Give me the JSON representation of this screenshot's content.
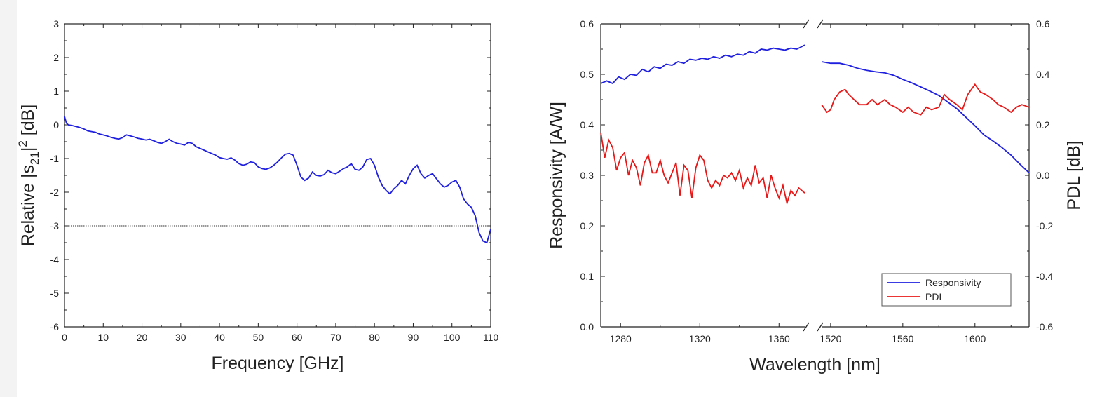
{
  "chart_data": [
    {
      "type": "line",
      "xlabel": "Frequency  [GHz]",
      "ylabel_main": "Relative |s",
      "ylabel_sub": "21",
      "ylabel_sup": "2",
      "ylabel_tail": "  [dB]",
      "xlim": [
        0,
        110
      ],
      "ylim": [
        -6,
        3
      ],
      "x_ticks": [
        "0",
        "10",
        "20",
        "30",
        "40",
        "50",
        "60",
        "70",
        "80",
        "90",
        "100",
        "110"
      ],
      "y_ticks": [
        "-6",
        "-5",
        "-4",
        "-3",
        "-2",
        "-1",
        "0",
        "1",
        "2",
        "3"
      ],
      "reference_line_y": -3,
      "series": [
        {
          "color": "#1f1fe0",
          "x": [
            0,
            0.5,
            1,
            2,
            3,
            4,
            5,
            6,
            7,
            8,
            9,
            10,
            11,
            12,
            13,
            14,
            15,
            16,
            17,
            18,
            19,
            20,
            21,
            22,
            23,
            24,
            25,
            26,
            27,
            28,
            29,
            30,
            31,
            32,
            33,
            34,
            35,
            36,
            37,
            38,
            39,
            40,
            41,
            42,
            43,
            44,
            45,
            46,
            47,
            48,
            49,
            50,
            51,
            52,
            53,
            54,
            55,
            56,
            57,
            58,
            59,
            60,
            61,
            62,
            63,
            64,
            65,
            66,
            67,
            68,
            69,
            70,
            71,
            72,
            73,
            74,
            75,
            76,
            77,
            78,
            79,
            80,
            81,
            82,
            83,
            84,
            85,
            86,
            87,
            88,
            89,
            90,
            91,
            92,
            93,
            94,
            95,
            96,
            97,
            98,
            99,
            100,
            101,
            102,
            103,
            104,
            105,
            106,
            107,
            108,
            109,
            110
          ],
          "y": [
            0.25,
            0.05,
            0.0,
            -0.02,
            -0.05,
            -0.08,
            -0.12,
            -0.18,
            -0.2,
            -0.22,
            -0.27,
            -0.3,
            -0.33,
            -0.37,
            -0.4,
            -0.42,
            -0.38,
            -0.3,
            -0.33,
            -0.36,
            -0.4,
            -0.42,
            -0.45,
            -0.43,
            -0.47,
            -0.52,
            -0.55,
            -0.5,
            -0.43,
            -0.5,
            -0.55,
            -0.57,
            -0.6,
            -0.52,
            -0.55,
            -0.65,
            -0.7,
            -0.75,
            -0.8,
            -0.85,
            -0.9,
            -0.97,
            -1.0,
            -1.02,
            -0.98,
            -1.05,
            -1.15,
            -1.2,
            -1.17,
            -1.1,
            -1.12,
            -1.25,
            -1.3,
            -1.32,
            -1.28,
            -1.2,
            -1.1,
            -0.98,
            -0.87,
            -0.85,
            -0.9,
            -1.2,
            -1.55,
            -1.65,
            -1.58,
            -1.4,
            -1.5,
            -1.52,
            -1.48,
            -1.35,
            -1.42,
            -1.45,
            -1.38,
            -1.3,
            -1.25,
            -1.15,
            -1.32,
            -1.35,
            -1.25,
            -1.03,
            -1.0,
            -1.2,
            -1.55,
            -1.8,
            -1.95,
            -2.05,
            -1.9,
            -1.8,
            -1.65,
            -1.75,
            -1.5,
            -1.3,
            -1.2,
            -1.45,
            -1.58,
            -1.5,
            -1.45,
            -1.6,
            -1.75,
            -1.85,
            -1.8,
            -1.7,
            -1.65,
            -1.85,
            -2.2,
            -2.35,
            -2.45,
            -2.7,
            -3.2,
            -3.45,
            -3.5,
            -3.1
          ]
        }
      ]
    },
    {
      "type": "line",
      "broken_x_axis": true,
      "xlabel": "Wavelength  [nm]",
      "ylabel_left": "Responsivity  [A/W]",
      "ylabel_right": "PDL [dB]",
      "xlim_segments": [
        [
          1270,
          1373
        ],
        [
          1515,
          1630
        ]
      ],
      "ylim_left": [
        0.0,
        0.6
      ],
      "ylim_right": [
        -0.6,
        0.6
      ],
      "x_ticks_segments": [
        [
          "1280",
          "1320",
          "1360"
        ],
        [
          "1520",
          "1560",
          "1600"
        ]
      ],
      "y_ticks_left": [
        "0.0",
        "0.1",
        "0.2",
        "0.3",
        "0.4",
        "0.5",
        "0.6"
      ],
      "y_ticks_right": [
        "-0.6",
        "-0.4",
        "-0.2",
        "0.0",
        "0.2",
        "0.4",
        "0.6"
      ],
      "legend": [
        "Responsivity",
        "PDL"
      ],
      "legend_position": "bottom-right",
      "series": [
        {
          "name": "Responsivity",
          "axis": "left",
          "color": "#1f1fe0",
          "segments": [
            {
              "x": [
                1270,
                1273,
                1276,
                1279,
                1282,
                1285,
                1288,
                1291,
                1294,
                1297,
                1300,
                1303,
                1306,
                1309,
                1312,
                1315,
                1318,
                1321,
                1324,
                1327,
                1330,
                1333,
                1336,
                1339,
                1342,
                1345,
                1348,
                1351,
                1354,
                1357,
                1360,
                1363,
                1366,
                1369,
                1373
              ],
              "y": [
                0.482,
                0.487,
                0.482,
                0.495,
                0.49,
                0.5,
                0.498,
                0.51,
                0.505,
                0.515,
                0.512,
                0.52,
                0.518,
                0.525,
                0.522,
                0.53,
                0.528,
                0.532,
                0.53,
                0.535,
                0.532,
                0.538,
                0.535,
                0.54,
                0.538,
                0.545,
                0.542,
                0.55,
                0.548,
                0.552,
                0.55,
                0.548,
                0.552,
                0.55,
                0.558
              ]
            },
            {
              "x": [
                1515,
                1520,
                1525,
                1530,
                1535,
                1540,
                1545,
                1550,
                1555,
                1560,
                1565,
                1570,
                1575,
                1580,
                1585,
                1590,
                1595,
                1600,
                1605,
                1610,
                1615,
                1620,
                1625,
                1630
              ],
              "y": [
                0.525,
                0.522,
                0.522,
                0.518,
                0.512,
                0.508,
                0.505,
                0.503,
                0.498,
                0.49,
                0.483,
                0.475,
                0.467,
                0.458,
                0.445,
                0.432,
                0.415,
                0.398,
                0.38,
                0.368,
                0.355,
                0.34,
                0.322,
                0.305
              ]
            }
          ]
        },
        {
          "name": "PDL",
          "axis": "right",
          "color": "#e81818",
          "segments": [
            {
              "x": [
                1270,
                1272,
                1274,
                1276,
                1278,
                1280,
                1282,
                1284,
                1286,
                1288,
                1290,
                1292,
                1294,
                1296,
                1298,
                1300,
                1302,
                1304,
                1306,
                1308,
                1310,
                1312,
                1314,
                1316,
                1318,
                1320,
                1322,
                1324,
                1326,
                1328,
                1330,
                1332,
                1334,
                1336,
                1338,
                1340,
                1342,
                1344,
                1346,
                1348,
                1350,
                1352,
                1354,
                1356,
                1358,
                1360,
                1362,
                1364,
                1366,
                1368,
                1370,
                1373
              ],
              "y": [
                0.17,
                0.07,
                0.14,
                0.11,
                0.02,
                0.07,
                0.09,
                0.0,
                0.06,
                0.03,
                -0.04,
                0.05,
                0.08,
                0.01,
                0.01,
                0.06,
                0.0,
                -0.03,
                0.01,
                0.05,
                -0.08,
                0.04,
                0.02,
                -0.09,
                0.03,
                0.08,
                0.06,
                -0.02,
                -0.05,
                -0.02,
                -0.04,
                0.0,
                -0.01,
                0.01,
                -0.02,
                0.02,
                -0.05,
                -0.01,
                -0.04,
                0.04,
                -0.03,
                -0.01,
                -0.09,
                0.0,
                -0.05,
                -0.09,
                -0.04,
                -0.11,
                -0.06,
                -0.08,
                -0.05,
                -0.07
              ]
            },
            {
              "x": [
                1515,
                1518,
                1520,
                1522,
                1525,
                1528,
                1530,
                1533,
                1536,
                1540,
                1543,
                1546,
                1550,
                1553,
                1556,
                1560,
                1563,
                1566,
                1570,
                1573,
                1576,
                1580,
                1583,
                1586,
                1590,
                1593,
                1596,
                1600,
                1603,
                1606,
                1610,
                1613,
                1616,
                1620,
                1623,
                1626,
                1630
              ],
              "y": [
                0.28,
                0.25,
                0.26,
                0.3,
                0.33,
                0.34,
                0.32,
                0.3,
                0.28,
                0.28,
                0.3,
                0.28,
                0.3,
                0.28,
                0.27,
                0.25,
                0.27,
                0.25,
                0.24,
                0.27,
                0.26,
                0.27,
                0.32,
                0.3,
                0.28,
                0.26,
                0.32,
                0.36,
                0.33,
                0.32,
                0.3,
                0.28,
                0.27,
                0.25,
                0.27,
                0.28,
                0.27
              ]
            }
          ]
        }
      ]
    }
  ]
}
